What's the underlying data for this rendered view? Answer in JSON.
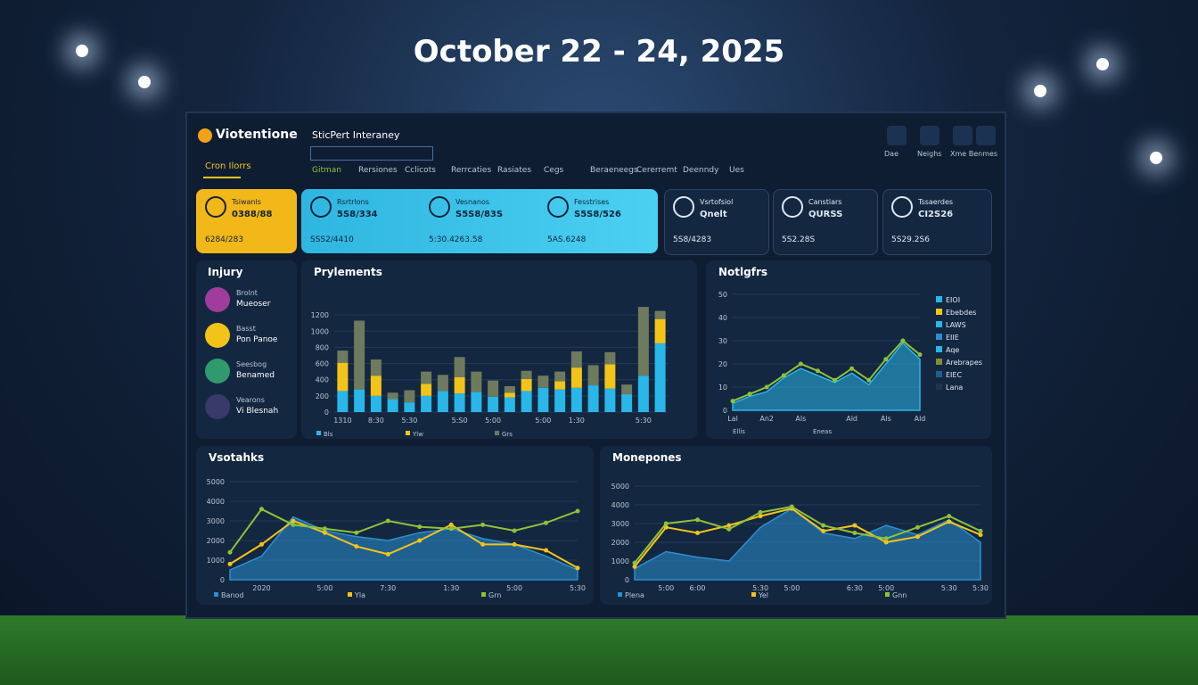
{
  "header": {
    "title": "October 22 - 24, 2025"
  },
  "dashboard": {
    "brand": "Viotentione",
    "brand_sub": "Cron Ilorrs",
    "section": "SticPert Interaney",
    "nav": [
      "Gitman",
      "Rersiones",
      "Cclicots",
      "Rerrcaties",
      "Rasiates",
      "Cegs",
      "Beraeneegs",
      "Cererremt",
      "Deenndy",
      "Ues"
    ],
    "top_icons": [
      "Dae",
      "Neighs",
      "Xme Benmes"
    ],
    "cards": [
      {
        "label": "Tsiwanls",
        "value": "0388/88",
        "foot": "6284/283"
      },
      {
        "label": "Rsrtrlons",
        "value": "5S8/334",
        "foot": "SSS2/4410"
      },
      {
        "label": "Vesnanos",
        "value": "S5S8/83S",
        "foot": "5:30.4263.58"
      },
      {
        "label": "Fesstrises",
        "value": "S5S8/526",
        "foot": "5AS.6248"
      },
      {
        "label": "Vsrtofsiol",
        "value": "Qnelt",
        "foot": "5S8/4283"
      },
      {
        "label": "Canstiars",
        "value": "QURSS",
        "foot": "5S2.28S"
      },
      {
        "label": "Tssaerdes",
        "value": "CI2S26",
        "foot": "5S29.2S6"
      }
    ],
    "injury": {
      "title": "Injury",
      "players": [
        {
          "name": "Brolnt",
          "sub": "Mueoser"
        },
        {
          "name": "Basst",
          "sub": "Pon Panoe"
        },
        {
          "name": "Seesbog",
          "sub": "Benamed"
        },
        {
          "name": "Vearons",
          "sub": "Vi Blesnah"
        }
      ]
    },
    "legend": [
      {
        "name": "EIOI",
        "color": "#29b6e8"
      },
      {
        "name": "Ebebdes",
        "color": "#f2c41a"
      },
      {
        "name": "LAWS",
        "color": "#29b6e8"
      },
      {
        "name": "EIIE",
        "color": "#2a8fd0"
      },
      {
        "name": "Aqe",
        "color": "#29b6e8"
      },
      {
        "name": "Arebrapes",
        "color": "#8a8a3a"
      },
      {
        "name": "EIEC",
        "color": "#1e5f8f"
      },
      {
        "name": "Lana",
        "color": "#1d3550"
      }
    ]
  },
  "chart_data": [
    {
      "type": "bar",
      "title": "Prylements",
      "ylim": [
        0,
        1400
      ],
      "yticks": [
        0,
        200,
        400,
        600,
        800,
        1000,
        1200
      ],
      "grid": true,
      "categories": [
        "1310",
        null,
        "8:30",
        null,
        "5:30",
        null,
        null,
        "5:S0",
        null,
        "5:00",
        null,
        null,
        "5:00",
        null,
        "1:30",
        null,
        null,
        null,
        "5:30",
        null
      ],
      "series": [
        {
          "name": "Bls",
          "color": "#29b6e8",
          "values": [
            260,
            280,
            200,
            160,
            120,
            200,
            260,
            230,
            250,
            190,
            180,
            260,
            300,
            280,
            300,
            330,
            290,
            220,
            450,
            850
          ]
        },
        {
          "name": "Ylw",
          "color": "#f2c41a",
          "values": [
            350,
            0,
            250,
            0,
            0,
            150,
            0,
            200,
            0,
            0,
            60,
            150,
            0,
            100,
            250,
            0,
            300,
            0,
            0,
            300
          ]
        },
        {
          "name": "Grs",
          "color": "#6e7a5e",
          "values": [
            150,
            850,
            200,
            80,
            150,
            150,
            200,
            250,
            250,
            200,
            80,
            100,
            150,
            120,
            200,
            250,
            150,
            120,
            850,
            100
          ]
        }
      ]
    },
    {
      "type": "line",
      "title": "Notlgfrs",
      "ylim": [
        0,
        50
      ],
      "yticks": [
        0,
        10,
        20,
        30,
        40,
        50
      ],
      "grid": true,
      "categories": [
        "Lal",
        null,
        "An2",
        null,
        "Als",
        null,
        null,
        "Ald",
        null,
        "Als",
        null,
        "Ald"
      ],
      "series": [
        {
          "name": "Ellis",
          "type": "area",
          "color": "#29b6e8",
          "values": [
            3,
            6,
            8,
            14,
            18,
            15,
            12,
            16,
            11,
            20,
            29,
            22
          ]
        },
        {
          "name": "Eneas",
          "type": "line",
          "color": "#8fc23a",
          "values": [
            4,
            7,
            10,
            15,
            20,
            17,
            13,
            18,
            13,
            22,
            30,
            24
          ]
        }
      ]
    },
    {
      "type": "line",
      "title": "Vsotahks",
      "ylim": [
        0,
        5000
      ],
      "yticks": [
        0,
        1000,
        2000,
        3000,
        4000,
        5000
      ],
      "grid": true,
      "categories": [
        null,
        "2020",
        null,
        "5:00",
        null,
        "7:30",
        null,
        "1:30",
        null,
        "5:00",
        null,
        "5:30"
      ],
      "series": [
        {
          "name": "Banod",
          "type": "area",
          "color": "#2a8fd0",
          "values": [
            500,
            1200,
            3200,
            2500,
            2200,
            2000,
            2400,
            2600,
            2100,
            1800,
            1200,
            500
          ]
        },
        {
          "name": "Yla",
          "type": "line",
          "color": "#f2c41a",
          "values": [
            800,
            1800,
            3000,
            2400,
            1700,
            1300,
            2000,
            2800,
            1800,
            1800,
            1500,
            600
          ]
        },
        {
          "name": "Grn",
          "type": "line",
          "color": "#8fc23a",
          "values": [
            1400,
            3600,
            2800,
            2600,
            2400,
            3000,
            2700,
            2600,
            2800,
            2500,
            2900,
            3500
          ]
        }
      ]
    },
    {
      "type": "line",
      "title": "Monepones",
      "ylim": [
        0,
        5000
      ],
      "yticks": [
        0,
        1000,
        2000,
        3000,
        4000,
        5000
      ],
      "grid": true,
      "categories": [
        null,
        "5:00",
        "6:00",
        null,
        "5:30",
        "5:00",
        null,
        "6:30",
        "5:00",
        null,
        "5:30",
        "5:30"
      ],
      "series": [
        {
          "name": "Plena",
          "type": "area",
          "color": "#2a8fd0",
          "values": [
            600,
            1500,
            1200,
            1000,
            2800,
            3800,
            2500,
            2200,
            2900,
            2400,
            3200,
            2000
          ]
        },
        {
          "name": "Yel",
          "type": "line",
          "color": "#f2c41a",
          "values": [
            700,
            2800,
            2500,
            2900,
            3400,
            3800,
            2600,
            2900,
            2000,
            2300,
            3100,
            2400
          ]
        },
        {
          "name": "Gnn",
          "type": "line",
          "color": "#8fc23a",
          "values": [
            900,
            3000,
            3200,
            2700,
            3600,
            3900,
            2900,
            2500,
            2200,
            2800,
            3400,
            2600
          ]
        }
      ]
    }
  ]
}
